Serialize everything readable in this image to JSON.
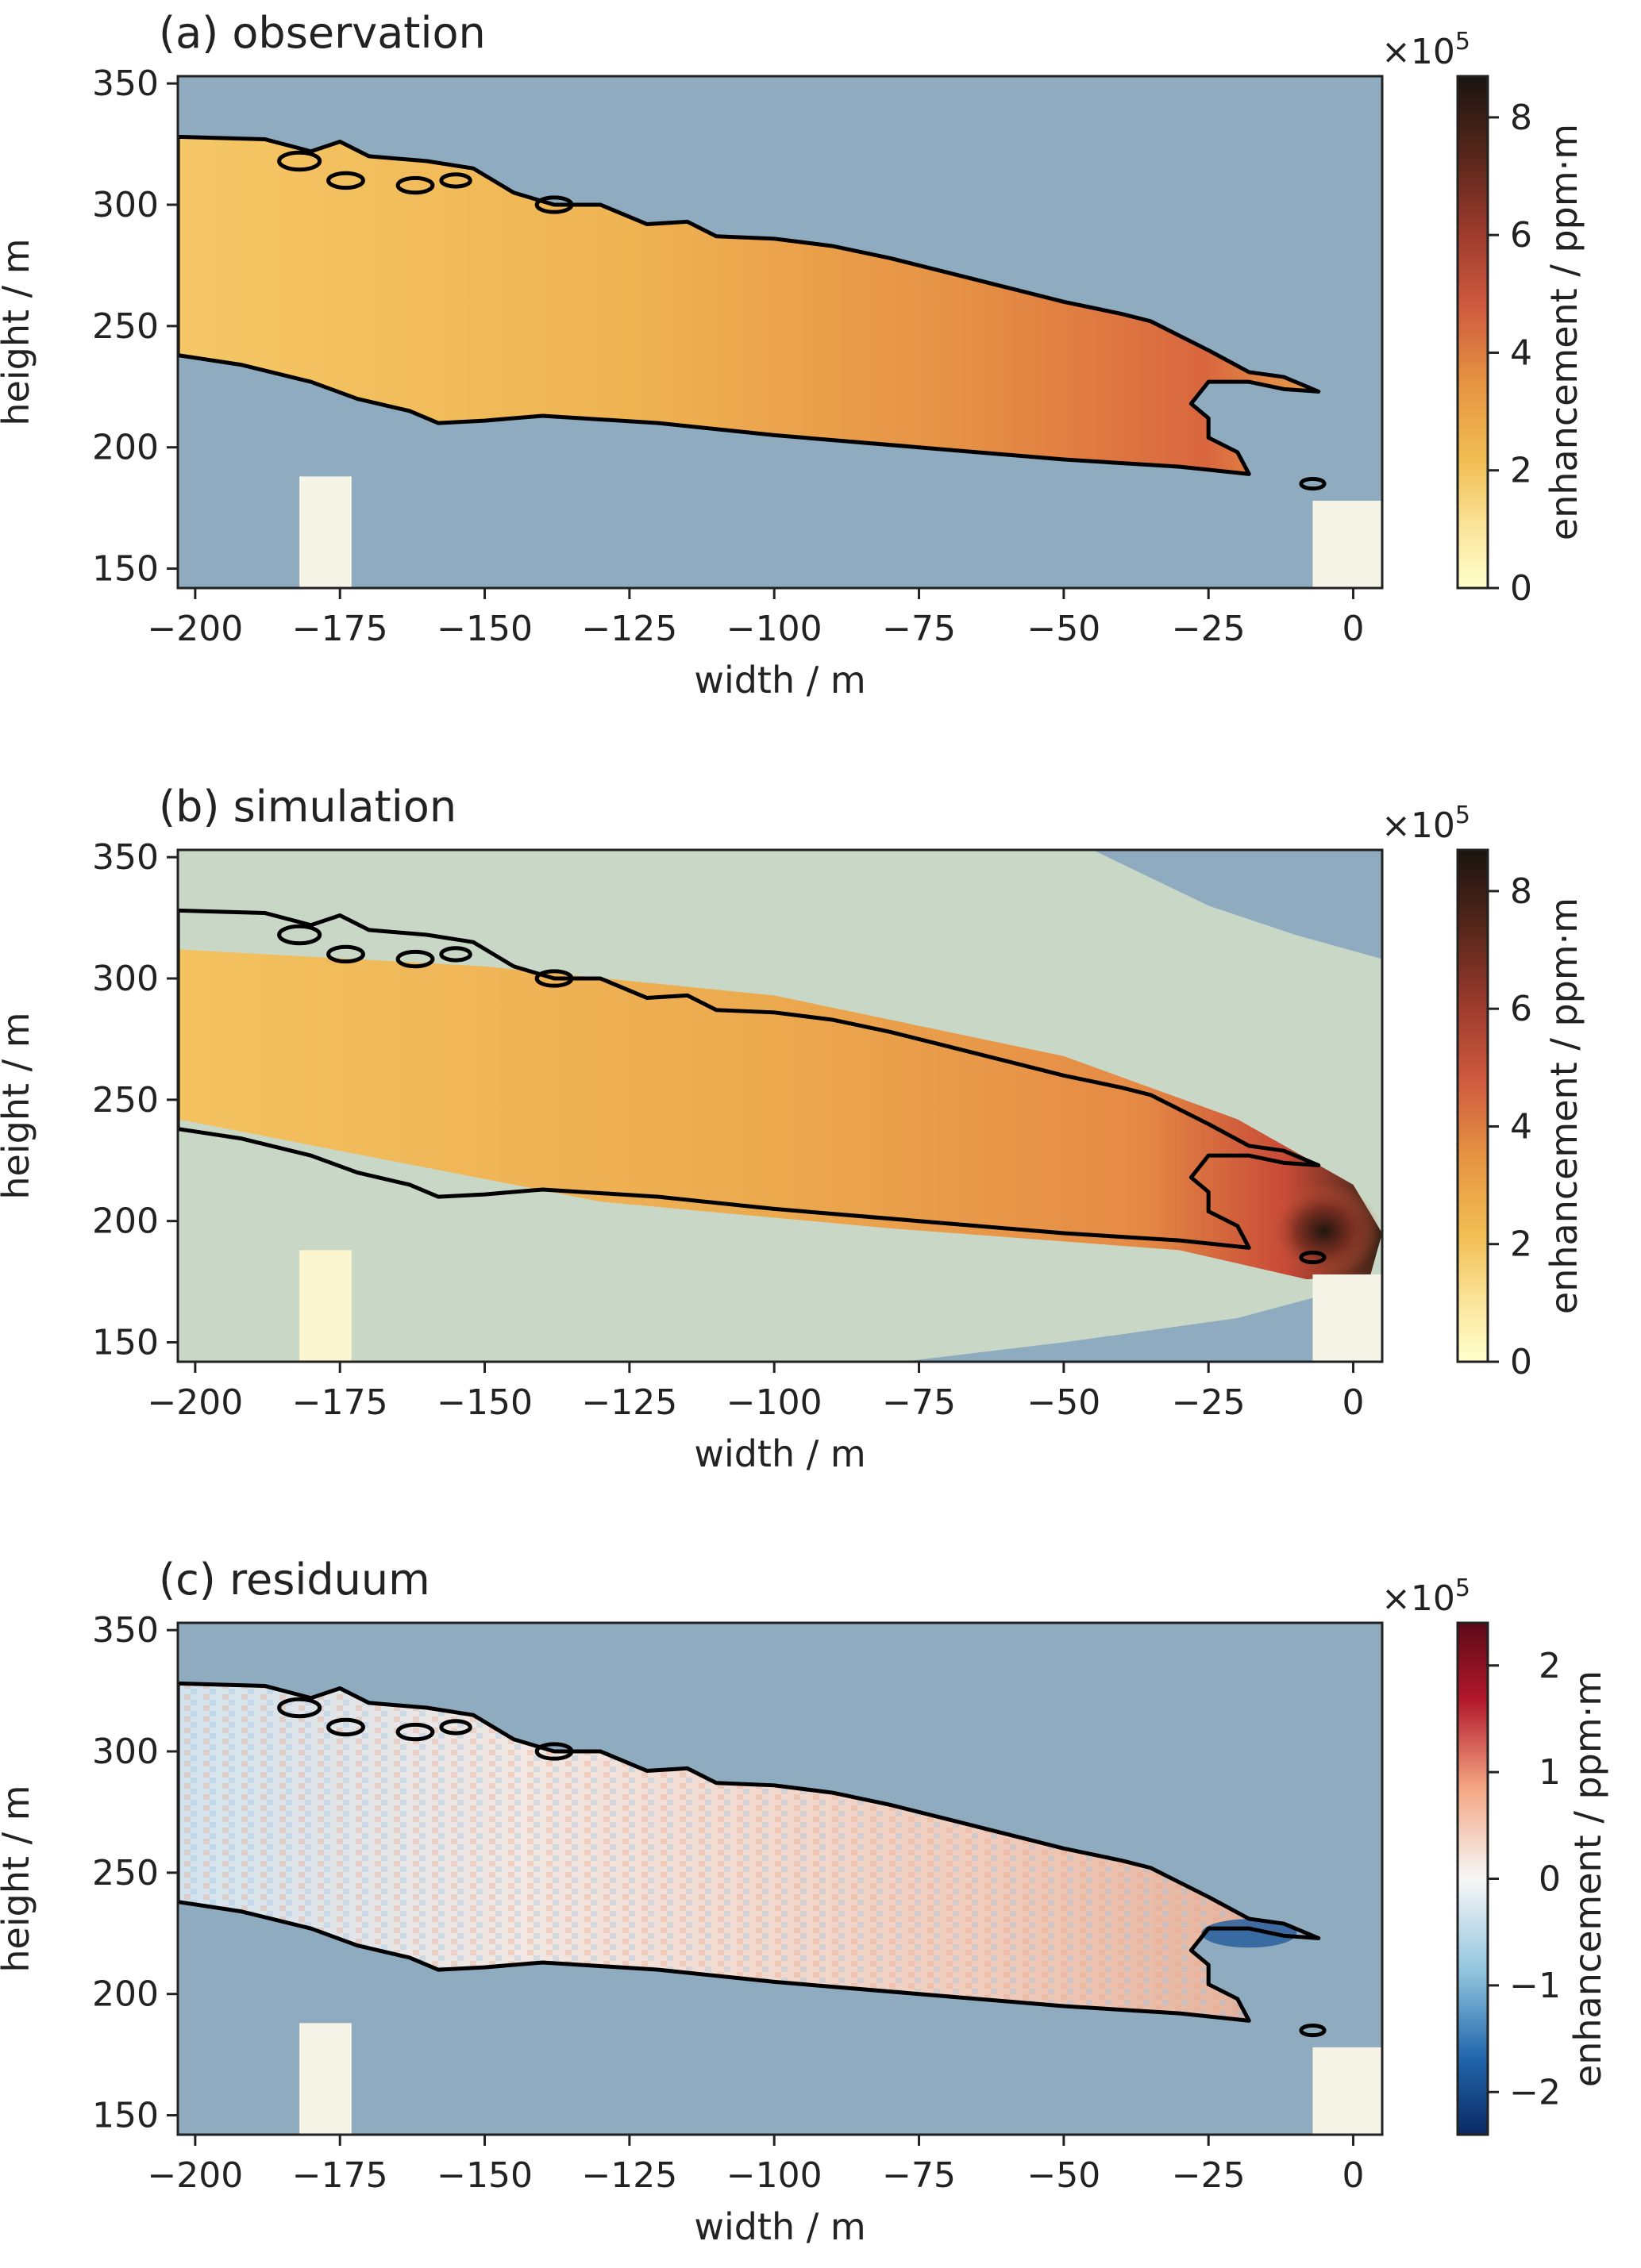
{
  "chart_data": [
    {
      "type": "heatmap",
      "title": "(a) observation",
      "xlabel": "width / m",
      "ylabel": "height / m",
      "xlim": [
        -203,
        5
      ],
      "ylim": [
        142,
        353
      ],
      "xticks": [
        -200,
        -175,
        -150,
        -125,
        -100,
        -75,
        -50,
        -25,
        0
      ],
      "xtick_labels": [
        "−200",
        "−175",
        "−150",
        "−125",
        "−100",
        "−75",
        "−50",
        "−25",
        "0"
      ],
      "yticks": [
        150,
        200,
        250,
        300,
        350
      ],
      "ytick_labels": [
        "150",
        "200",
        "250",
        "300",
        "350"
      ],
      "colorbar": {
        "label": "enhancement / ppm·m",
        "multiplier": "×10",
        "exponent": "5",
        "range": [
          0,
          8.7
        ],
        "ticks": [
          0,
          2,
          4,
          6,
          8
        ],
        "tick_labels": [
          "0",
          "2",
          "4",
          "6",
          "8"
        ],
        "colormap": "YlOrRd-to-dark"
      },
      "background_color": "#8fabbf",
      "plume_peak_value": 4.5
    },
    {
      "type": "heatmap",
      "title": "(b) simulation",
      "xlabel": "width / m",
      "ylabel": "height / m",
      "xlim": [
        -203,
        5
      ],
      "ylim": [
        142,
        353
      ],
      "xticks": [
        -200,
        -175,
        -150,
        -125,
        -100,
        -75,
        -50,
        -25,
        0
      ],
      "xtick_labels": [
        "−200",
        "−175",
        "−150",
        "−125",
        "−100",
        "−75",
        "−50",
        "−25",
        "0"
      ],
      "yticks": [
        150,
        200,
        250,
        300,
        350
      ],
      "ytick_labels": [
        "150",
        "200",
        "250",
        "300",
        "350"
      ],
      "colorbar": {
        "label": "enhancement / ppm·m",
        "multiplier": "×10",
        "exponent": "5",
        "range": [
          0,
          8.7
        ],
        "ticks": [
          0,
          2,
          4,
          6,
          8
        ],
        "tick_labels": [
          "0",
          "2",
          "4",
          "6",
          "8"
        ],
        "colormap": "YlOrRd-to-dark"
      },
      "background_color": "#c9d8c6",
      "plume_peak_value": 8.5
    },
    {
      "type": "heatmap",
      "title": "(c) residuum",
      "xlabel": "width / m",
      "ylabel": "height / m",
      "xlim": [
        -203,
        5
      ],
      "ylim": [
        142,
        353
      ],
      "xticks": [
        -200,
        -175,
        -150,
        -125,
        -100,
        -75,
        -50,
        -25,
        0
      ],
      "xtick_labels": [
        "−200",
        "−175",
        "−150",
        "−125",
        "−100",
        "−75",
        "−50",
        "−25",
        "0"
      ],
      "yticks": [
        150,
        200,
        250,
        300,
        350
      ],
      "ytick_labels": [
        "150",
        "200",
        "250",
        "300",
        "350"
      ],
      "colorbar": {
        "label": "enhancement / ppm·m",
        "multiplier": "×10",
        "exponent": "5",
        "range": [
          -2.4,
          2.4
        ],
        "ticks": [
          -2,
          -1,
          0,
          1,
          2
        ],
        "tick_labels": [
          "−2",
          "−1",
          "0",
          "1",
          "2"
        ],
        "colormap": "RdBu-diverging"
      },
      "background_color": "#8fabbf"
    }
  ],
  "contour": {
    "upper": [
      [
        -203,
        328
      ],
      [
        -188,
        327
      ],
      [
        -180,
        322
      ],
      [
        -175,
        326
      ],
      [
        -170,
        320
      ],
      [
        -160,
        318
      ],
      [
        -152,
        315
      ],
      [
        -145,
        305
      ],
      [
        -138,
        300
      ],
      [
        -130,
        300
      ],
      [
        -122,
        292
      ],
      [
        -115,
        293
      ],
      [
        -110,
        287
      ],
      [
        -100,
        286
      ],
      [
        -90,
        283
      ],
      [
        -80,
        278
      ],
      [
        -70,
        272
      ],
      [
        -60,
        266
      ],
      [
        -50,
        260
      ],
      [
        -40,
        255
      ],
      [
        -35,
        252
      ],
      [
        -25,
        240
      ],
      [
        -18,
        231
      ],
      [
        -12,
        229
      ],
      [
        -6,
        223
      ],
      [
        -12,
        224
      ],
      [
        -18,
        227
      ],
      [
        -25,
        227
      ],
      [
        -28,
        218
      ],
      [
        -25,
        212
      ],
      [
        -25,
        204
      ],
      [
        -20,
        198
      ],
      [
        -18,
        189
      ],
      [
        -30,
        192
      ],
      [
        -50,
        195
      ],
      [
        -75,
        200
      ],
      [
        -100,
        205
      ],
      [
        -120,
        210
      ],
      [
        -140,
        213
      ],
      [
        -150,
        211
      ],
      [
        -158,
        210
      ],
      [
        -163,
        215
      ],
      [
        -172,
        220
      ],
      [
        -180,
        227
      ],
      [
        -192,
        234
      ],
      [
        -203,
        238
      ]
    ],
    "loops": [
      {
        "cx": -182,
        "cy": 318,
        "r": 3.5
      },
      {
        "cx": -174,
        "cy": 310,
        "r": 3
      },
      {
        "cx": -162,
        "cy": 308,
        "r": 3
      },
      {
        "cx": -155,
        "cy": 310,
        "r": 2.5
      },
      {
        "cx": -138,
        "cy": 300,
        "r": 3
      },
      {
        "cx": -7,
        "cy": 185,
        "r": 2
      }
    ]
  }
}
